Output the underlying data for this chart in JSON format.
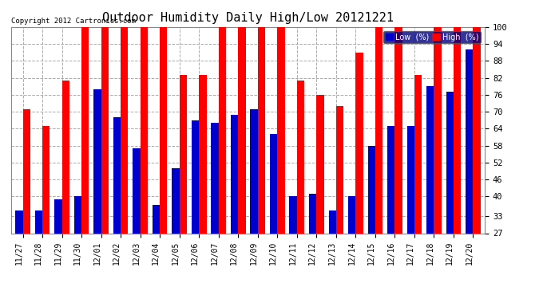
{
  "title": "Outdoor Humidity Daily High/Low 20121221",
  "copyright": "Copyright 2012 Cartronics.com",
  "categories": [
    "11/27",
    "11/28",
    "11/29",
    "11/30",
    "12/01",
    "12/02",
    "12/03",
    "12/04",
    "12/05",
    "12/06",
    "12/07",
    "12/08",
    "12/09",
    "12/10",
    "12/11",
    "12/12",
    "12/13",
    "12/14",
    "12/15",
    "12/16",
    "12/17",
    "12/18",
    "12/19",
    "12/20"
  ],
  "high_values": [
    71,
    65,
    81,
    100,
    100,
    100,
    100,
    100,
    83,
    83,
    100,
    100,
    100,
    100,
    81,
    76,
    72,
    91,
    100,
    100,
    83,
    100,
    100,
    100
  ],
  "low_values": [
    35,
    35,
    39,
    40,
    78,
    68,
    57,
    37,
    50,
    67,
    66,
    69,
    71,
    62,
    40,
    41,
    35,
    40,
    58,
    65,
    65,
    79,
    77,
    92
  ],
  "high_color": "#ff0000",
  "low_color": "#0000cc",
  "bg_color": "#ffffff",
  "grid_color": "#aaaaaa",
  "ylim_min": 27,
  "ylim_max": 100,
  "yticks": [
    27,
    33,
    40,
    46,
    52,
    58,
    64,
    70,
    76,
    82,
    88,
    94,
    100
  ],
  "title_fontsize": 11,
  "bar_width": 0.38,
  "legend_low_label": "Low  (%)",
  "legend_high_label": "High  (%)"
}
